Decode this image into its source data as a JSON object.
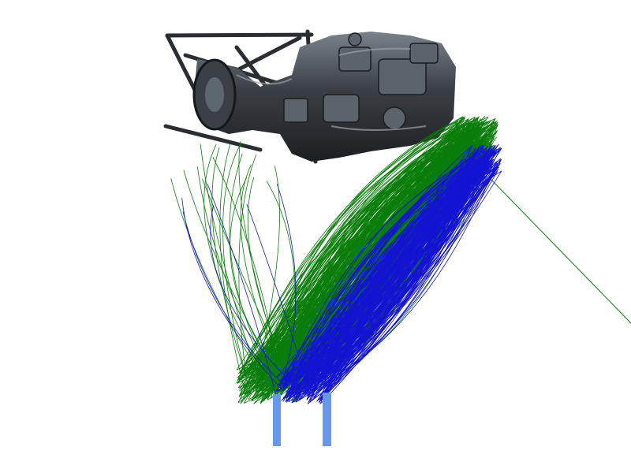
{
  "scene": {
    "background_color": "#ffffff",
    "object": {
      "kind": "engine-3d-model",
      "base_color": "#3a3f45",
      "highlight_color": "#8c949c",
      "shadow_color": "#1c1f22"
    },
    "trajectories": [
      {
        "color": "#0a7d0a",
        "kind": "green-trajectory-bundle"
      },
      {
        "color": "#1414d2",
        "kind": "blue-trajectory-bundle"
      }
    ],
    "supports": {
      "color": "#6699ee",
      "count": 2
    },
    "ray": {
      "color": "#0a7d0a"
    }
  }
}
